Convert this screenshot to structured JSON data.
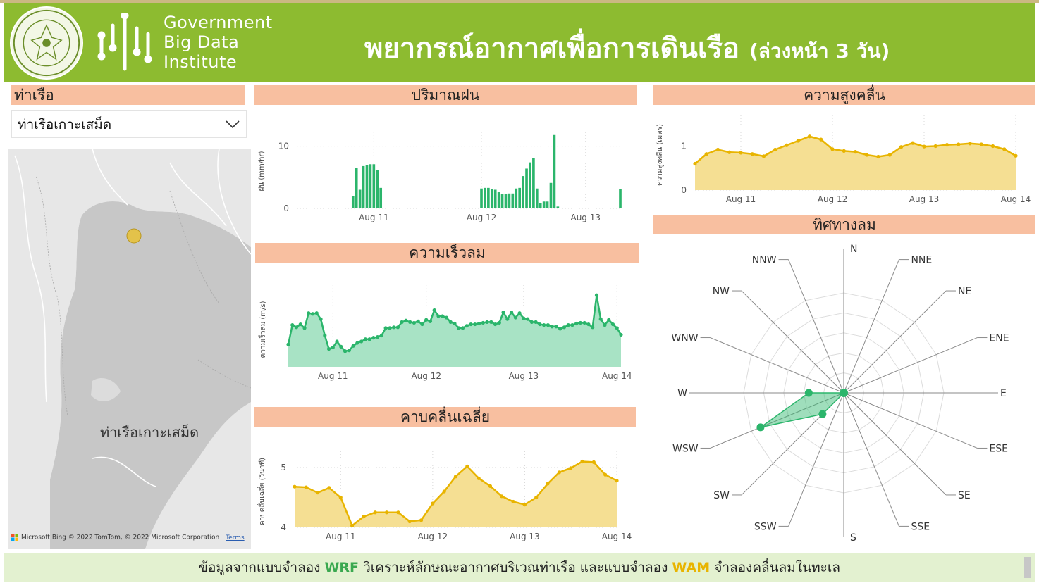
{
  "header": {
    "logo_line1": "Government",
    "logo_line2": "Big Data",
    "logo_line3": "Institute",
    "title": "พยากรณ์อากาศเพื่อการเดินเรือ",
    "title_suffix": "(ล่วงหน้า 3 วัน)"
  },
  "port": {
    "section_label": "ท่าเรือ",
    "selected": "ท่าเรือเกาะเสม็ด"
  },
  "map": {
    "label": "ท่าเรือเกาะเสม็ด",
    "credit_brand": "Microsoft Bing",
    "credit": "© 2022 TomTom, © 2022 Microsoft Corporation",
    "terms": "Terms",
    "marker_color": "#e3c24a"
  },
  "panels": {
    "rain": "ปริมาณฝน",
    "wind_speed": "ความเร็วลม",
    "wave_period": "คาบคลื่นเฉลี่ย",
    "wave_height": "ความสูงคลื่น",
    "wind_direction": "ทิศทางลม"
  },
  "colors": {
    "header_bg": "#8dbb30",
    "section_bg": "#f8bfa0",
    "green": "#2bb56b",
    "green_fill": "#a8e3c5",
    "yellow": "#e8b400",
    "yellow_fill": "#f5df93"
  },
  "chart_data": [
    {
      "id": "rain",
      "type": "bar",
      "ylabel": "ฝน (mm/hr)",
      "xticks": [
        "Aug 11",
        "Aug 12",
        "Aug 13"
      ],
      "yticks": [
        0,
        10
      ],
      "ylim": [
        0,
        12
      ],
      "values": [
        0,
        0,
        0,
        0,
        0,
        0,
        0,
        0,
        0,
        0,
        0,
        0,
        0,
        0,
        0,
        0,
        2,
        6.5,
        3,
        6.8,
        7,
        7.1,
        7.1,
        6.2,
        3.3,
        0,
        0,
        0,
        0,
        0,
        0,
        0,
        0,
        0,
        0,
        0,
        0,
        0,
        0,
        0,
        0,
        0,
        0,
        0,
        0,
        0,
        0,
        0,
        0,
        0,
        0,
        0,
        0,
        3.2,
        3.3,
        3.3,
        3.1,
        3,
        2.6,
        2.3,
        2.3,
        2.4,
        2.4,
        3.2,
        3.3,
        5.2,
        6.4,
        7.4,
        8.1,
        3.2,
        0.8,
        1.1,
        1.1,
        4.1,
        11.8,
        0.3,
        0,
        0,
        0,
        0,
        0,
        0,
        0,
        0,
        0,
        0,
        0,
        0,
        0,
        0,
        0,
        0,
        0,
        3.1
      ]
    },
    {
      "id": "wind_speed",
      "type": "area",
      "ylabel": "ความเร็วลม (m/s)",
      "xticks": [
        "Aug 11",
        "Aug 12",
        "Aug 13",
        "Aug 14"
      ],
      "ylim": [
        0,
        10
      ],
      "values": [
        3,
        5.6,
        5.3,
        5.7,
        5.2,
        7.2,
        7.1,
        7.2,
        6.4,
        4.2,
        2.4,
        2.6,
        3.4,
        2.7,
        2.1,
        2.2,
        2.8,
        3.2,
        3.4,
        3.7,
        3.7,
        3.9,
        4,
        4.2,
        5.2,
        5.2,
        5.3,
        5.3,
        6,
        6.2,
        6,
        5.9,
        6.1,
        5.7,
        6.3,
        6.1,
        7.6,
        6.8,
        6.8,
        6.6,
        6,
        5.8,
        5.2,
        5.2,
        5.5,
        5.7,
        5.7,
        5.8,
        5.9,
        6,
        6,
        5.7,
        5.9,
        7.3,
        6.4,
        7.3,
        6.6,
        7.2,
        6.5,
        6.4,
        6,
        6,
        5.7,
        5.6,
        5.6,
        5.4,
        5.4,
        5.1,
        5.3,
        5.6,
        5.6,
        5.8,
        5.9,
        5.9,
        5.7,
        5.3,
        9.6,
        6.4,
        5.6,
        6.3,
        5.7,
        5.2,
        4.3
      ]
    },
    {
      "id": "wave_period",
      "type": "area",
      "ylabel": "คาบคลื่นเฉลี่ย (วินาที)",
      "xticks": [
        "Aug 11",
        "Aug 12",
        "Aug 13",
        "Aug 14"
      ],
      "yticks": [
        4,
        5
      ],
      "ylim": [
        4,
        5.2
      ],
      "values": [
        4.68,
        4.67,
        4.58,
        4.66,
        4.5,
        4.03,
        4.18,
        4.25,
        4.25,
        4.25,
        4.1,
        4.12,
        4.4,
        4.6,
        4.85,
        5.02,
        4.82,
        4.69,
        4.52,
        4.43,
        4.38,
        4.5,
        4.73,
        4.92,
        4.99,
        5.1,
        5.09,
        4.88,
        4.78
      ]
    },
    {
      "id": "wave_height",
      "type": "area",
      "ylabel": "ความสูงคลื่น (เมตร)",
      "xticks": [
        "Aug 11",
        "Aug 12",
        "Aug 13",
        "Aug 14"
      ],
      "yticks": [
        0,
        1
      ],
      "ylim": [
        0,
        1.6
      ],
      "values": [
        0.6,
        0.82,
        0.92,
        0.86,
        0.85,
        0.82,
        0.77,
        0.92,
        1.02,
        1.12,
        1.22,
        1.15,
        0.93,
        0.89,
        0.87,
        0.8,
        0.76,
        0.8,
        0.98,
        1.07,
        0.99,
        1.0,
        1.03,
        1.04,
        1.06,
        1.04,
        1.0,
        0.93,
        0.78
      ]
    },
    {
      "id": "wind_direction",
      "type": "radar",
      "directions": [
        "N",
        "NNE",
        "NE",
        "ENE",
        "E",
        "ESE",
        "SE",
        "SSE",
        "S",
        "SSW",
        "SW",
        "WSW",
        "W",
        "WNW",
        "NW",
        "NNW"
      ],
      "values": [
        0,
        0,
        0,
        0,
        0,
        0,
        0,
        0,
        0,
        0,
        0.3,
        0.9,
        0.35,
        0,
        0,
        0
      ],
      "rings": 5
    }
  ],
  "footer": {
    "text1": "ข้อมูลจากแบบจำลอง",
    "wrf": "WRF",
    "text2": "วิเคราะห์ลักษณะอากาศบริเวณท่าเรือ และแบบจำลอง",
    "wam": "WAM",
    "text3": "จำลองคลื่นลมในทะเล"
  }
}
